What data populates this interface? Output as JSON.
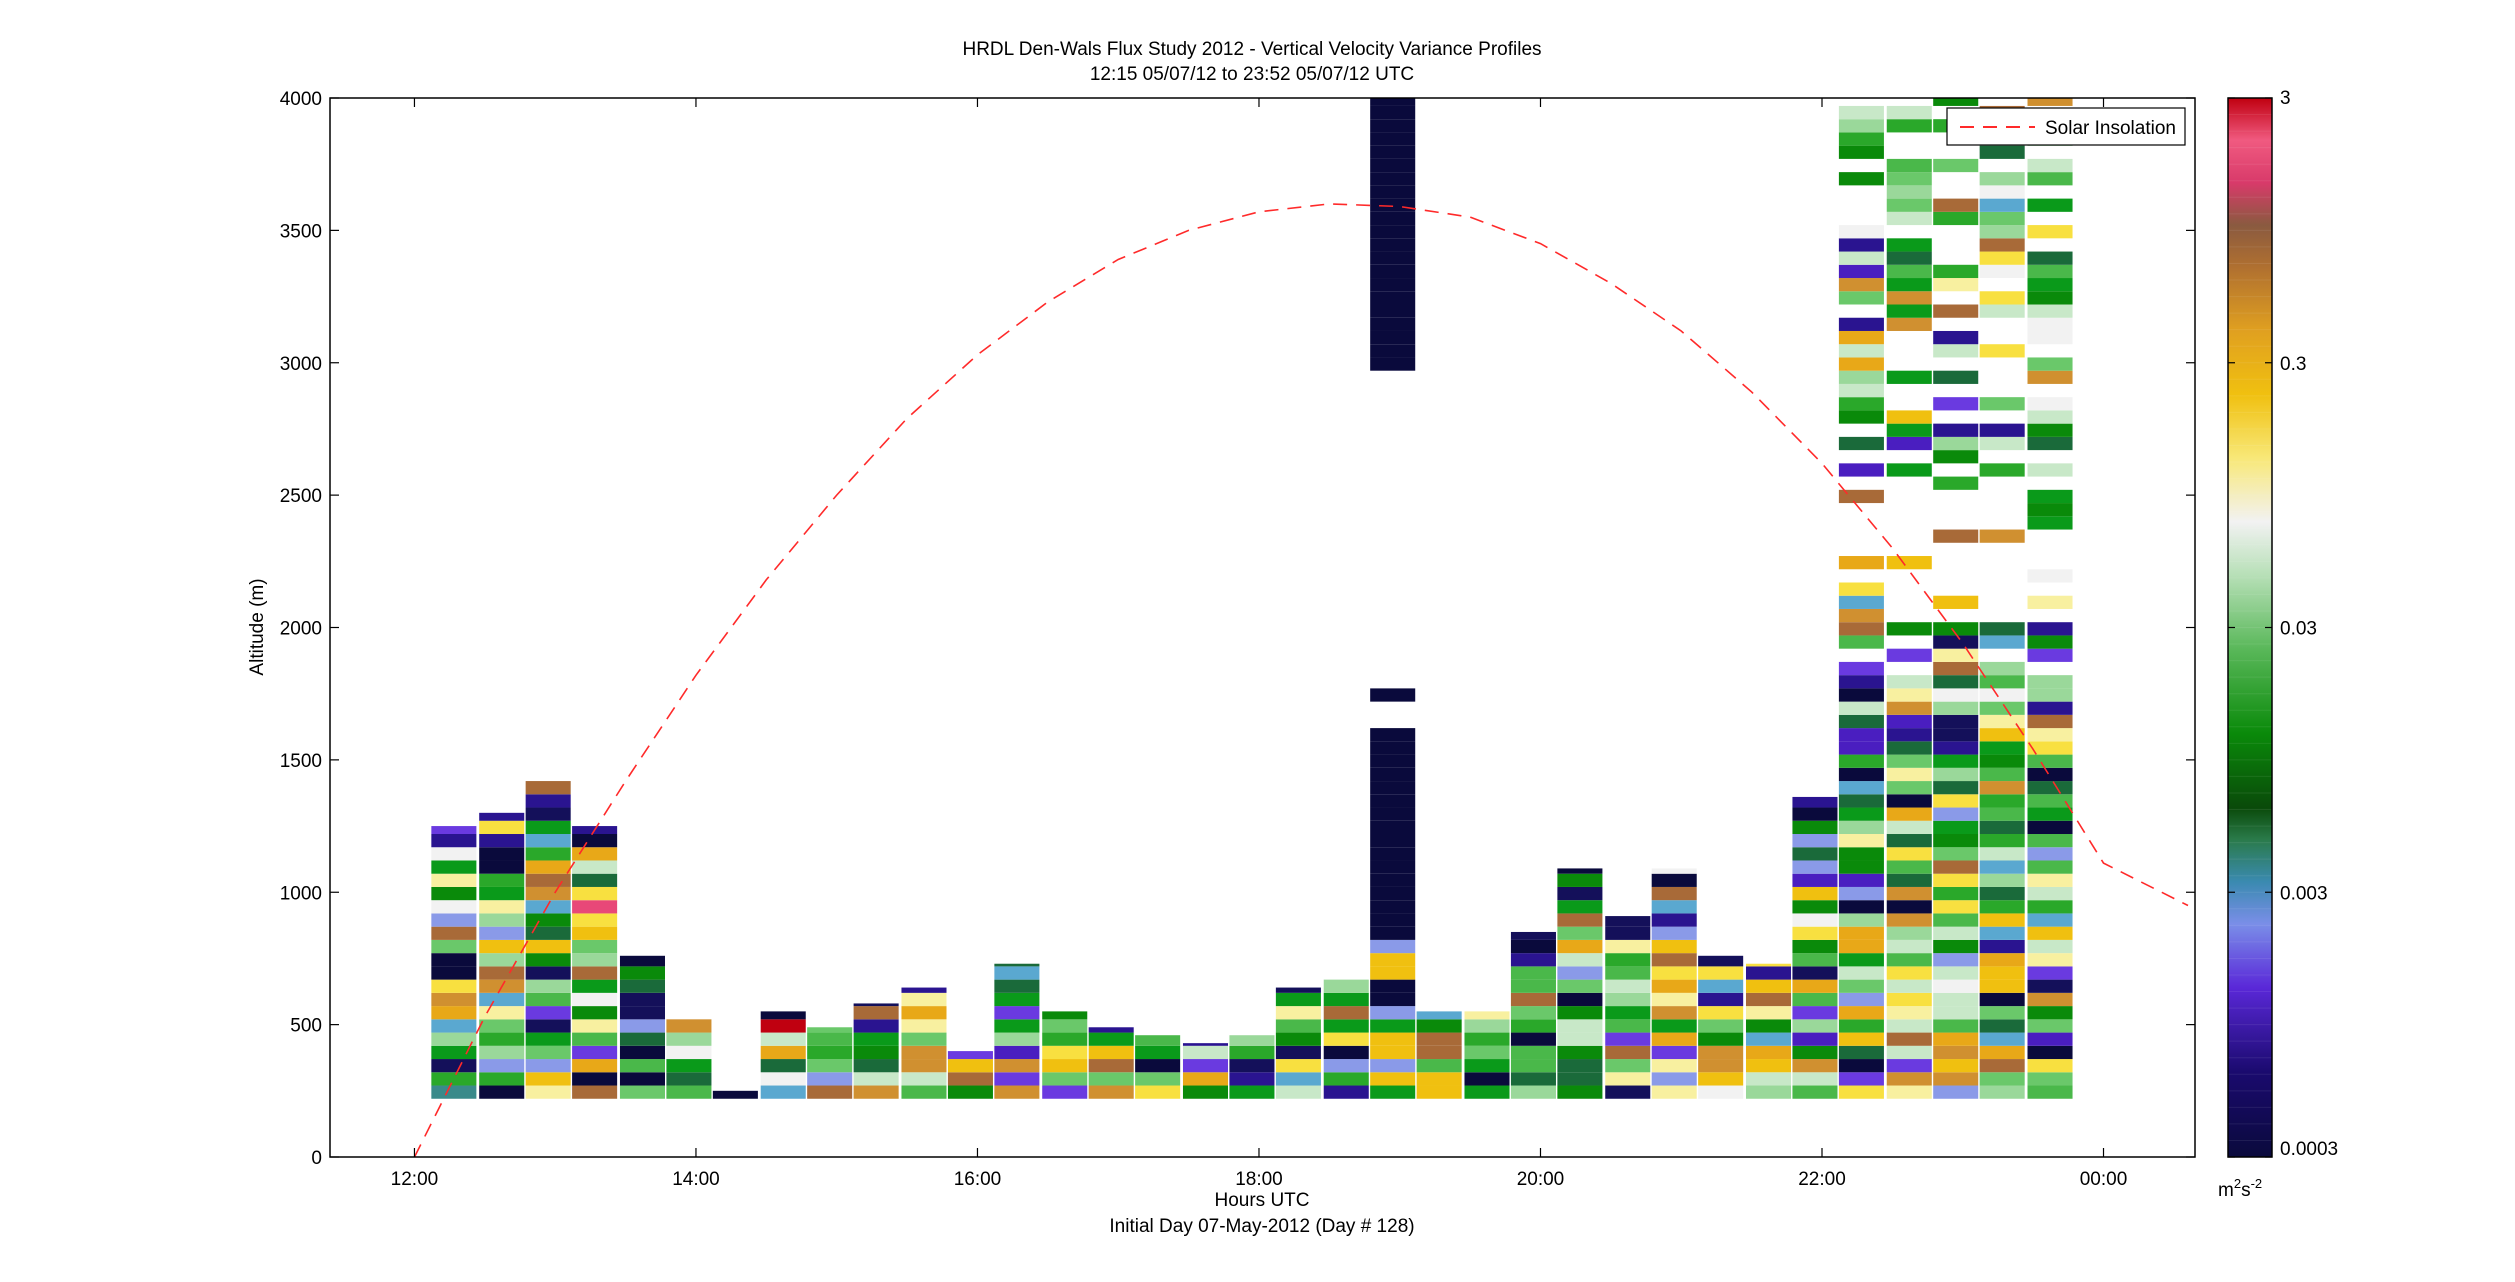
{
  "chart_data": {
    "type": "heatmap",
    "title": "HRDL Den-Wals Flux Study 2012 - Vertical Velocity Variance Profiles",
    "subtitle": "12:15 05/07/12 to 23:52 05/07/12  UTC",
    "xlabel": "Hours UTC",
    "xlabel2": "Initial Day 07-May-2012 (Day # 128)",
    "ylabel": "Altitude (m)",
    "xlim": [
      11.4,
      24.65
    ],
    "ylim": [
      0,
      4000
    ],
    "x_ticks": [
      12,
      14,
      16,
      18,
      20,
      22,
      24
    ],
    "x_tick_labels": [
      "12:00",
      "14:00",
      "16:00",
      "18:00",
      "20:00",
      "22:00",
      "00:00"
    ],
    "y_ticks": [
      0,
      500,
      1000,
      1500,
      2000,
      2500,
      3000,
      3500,
      4000
    ],
    "y_tick_labels": [
      "0",
      "500",
      "1000",
      "1500",
      "2000",
      "2500",
      "3000",
      "3500",
      "4000"
    ],
    "colorbar": {
      "scale": "log",
      "range": [
        0.0003,
        3
      ],
      "ticks": [
        0.0003,
        0.003,
        0.03,
        0.3,
        3
      ],
      "tick_labels": [
        "0.0003",
        "0.003",
        "0.03",
        "0.3",
        "3"
      ],
      "unit_base": "m",
      "unit_exp1": "2",
      "unit_mid": "s",
      "unit_exp2": "-2"
    },
    "legend": {
      "position": "top-right",
      "entries": [
        "Solar Insolation"
      ]
    },
    "series": [
      {
        "name": "Solar Insolation",
        "style": "dashed",
        "color": "#ff2a2a",
        "x": [
          12.0,
          12.5,
          13.0,
          13.5,
          14.0,
          14.5,
          15.0,
          15.5,
          16.0,
          16.5,
          17.0,
          17.5,
          18.0,
          18.5,
          19.0,
          19.5,
          20.0,
          20.5,
          21.0,
          21.5,
          22.0,
          22.5,
          23.0,
          23.5,
          24.0,
          24.6
        ],
        "y": [
          0,
          530,
          1000,
          1420,
          1820,
          2180,
          2500,
          2790,
          3030,
          3230,
          3390,
          3500,
          3570,
          3600,
          3590,
          3550,
          3450,
          3300,
          3120,
          2890,
          2620,
          2300,
          1940,
          1540,
          1110,
          950
        ]
      }
    ],
    "profiles": [
      {
        "t": 12.28,
        "top": 1250,
        "bot": 220,
        "seed": 11
      },
      {
        "t": 12.62,
        "top": 1300,
        "bot": 220,
        "seed": 12
      },
      {
        "t": 12.95,
        "top": 1420,
        "bot": 220,
        "seed": 13
      },
      {
        "t": 13.28,
        "top": 1250,
        "bot": 220,
        "seed": 14
      },
      {
        "t": 13.62,
        "top": 760,
        "bot": 220,
        "seed": 15
      },
      {
        "t": 13.95,
        "top": 520,
        "bot": 220,
        "seed": 16
      },
      {
        "t": 14.28,
        "top": 250,
        "bot": 220,
        "seed": 17
      },
      {
        "t": 14.62,
        "top": 550,
        "bot": 220,
        "seed": 18
      },
      {
        "t": 14.95,
        "top": 490,
        "bot": 220,
        "seed": 19
      },
      {
        "t": 15.28,
        "top": 580,
        "bot": 220,
        "seed": 20
      },
      {
        "t": 15.62,
        "top": 640,
        "bot": 220,
        "seed": 21
      },
      {
        "t": 15.95,
        "top": 400,
        "bot": 220,
        "seed": 22
      },
      {
        "t": 16.28,
        "top": 730,
        "bot": 220,
        "seed": 23
      },
      {
        "t": 16.62,
        "top": 550,
        "bot": 220,
        "seed": 24
      },
      {
        "t": 16.95,
        "top": 490,
        "bot": 220,
        "seed": 25
      },
      {
        "t": 17.28,
        "top": 460,
        "bot": 220,
        "seed": 26
      },
      {
        "t": 17.62,
        "top": 430,
        "bot": 220,
        "seed": 27
      },
      {
        "t": 17.95,
        "top": 460,
        "bot": 220,
        "seed": 28
      },
      {
        "t": 18.28,
        "top": 640,
        "bot": 220,
        "seed": 29
      },
      {
        "t": 18.62,
        "top": 670,
        "bot": 220,
        "seed": 30
      },
      {
        "t": 18.95,
        "top": 4000,
        "bot": 220,
        "seed": 31,
        "special": "tall"
      },
      {
        "t": 19.28,
        "top": 550,
        "bot": 220,
        "seed": 32
      },
      {
        "t": 19.62,
        "top": 550,
        "bot": 220,
        "seed": 33
      },
      {
        "t": 19.95,
        "top": 850,
        "bot": 220,
        "seed": 34
      },
      {
        "t": 20.28,
        "top": 1090,
        "bot": 220,
        "seed": 35
      },
      {
        "t": 20.62,
        "top": 910,
        "bot": 220,
        "seed": 36
      },
      {
        "t": 20.95,
        "top": 1090,
        "bot": 220,
        "seed": 37
      },
      {
        "t": 21.28,
        "top": 760,
        "bot": 220,
        "seed": 38
      },
      {
        "t": 21.62,
        "top": 730,
        "bot": 220,
        "seed": 39
      },
      {
        "t": 21.95,
        "top": 1360,
        "bot": 220,
        "seed": 40
      },
      {
        "t": 22.28,
        "top": 4000,
        "bot": 220,
        "seed": 41,
        "special": "gappy"
      },
      {
        "t": 22.62,
        "top": 4000,
        "bot": 220,
        "seed": 42,
        "special": "gappy"
      },
      {
        "t": 22.95,
        "top": 4000,
        "bot": 220,
        "seed": 43,
        "special": "gappy"
      },
      {
        "t": 23.28,
        "top": 4000,
        "bot": 220,
        "seed": 44,
        "special": "gappy"
      },
      {
        "t": 23.62,
        "top": 4000,
        "bot": 220,
        "seed": 45,
        "special": "gappy"
      }
    ]
  }
}
